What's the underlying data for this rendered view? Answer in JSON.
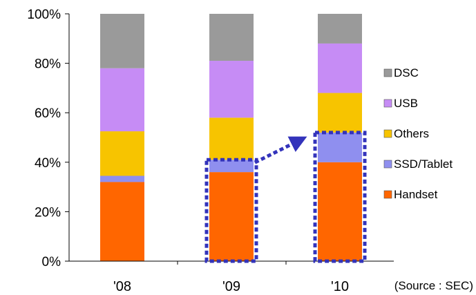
{
  "chart_data": {
    "type": "bar",
    "stacked": true,
    "categories": [
      "'08",
      "'09",
      "'10"
    ],
    "series": [
      {
        "name": "Handset",
        "color": "#ff6600",
        "values": [
          32,
          36,
          40
        ]
      },
      {
        "name": "SSD/Tablet",
        "color": "#8f8fef",
        "values": [
          2.5,
          5,
          12
        ]
      },
      {
        "name": "Others",
        "color": "#f7c400",
        "values": [
          18,
          17,
          16
        ]
      },
      {
        "name": "USB",
        "color": "#c68cf5",
        "values": [
          25.5,
          23,
          20
        ]
      },
      {
        "name": "DSC",
        "color": "#9a9a9a",
        "values": [
          22,
          19,
          12
        ]
      }
    ],
    "y_ticks": [
      "0%",
      "20%",
      "40%",
      "60%",
      "80%",
      "100%"
    ],
    "ylim": [
      0,
      100
    ],
    "legend_position": "right",
    "legend_order": [
      "DSC",
      "USB",
      "Others",
      "SSD/Tablet",
      "Handset"
    ],
    "source_note": "(Source : SEC)",
    "annotation": {
      "type": "dashed-box-arrow",
      "color": "#3333bb",
      "boxes": [
        {
          "category": "'09",
          "from": 0,
          "to": 41
        },
        {
          "category": "'10",
          "from": 0,
          "to": 52
        }
      ],
      "arrow": {
        "from_category": "'09",
        "to_category": "'10"
      }
    }
  }
}
